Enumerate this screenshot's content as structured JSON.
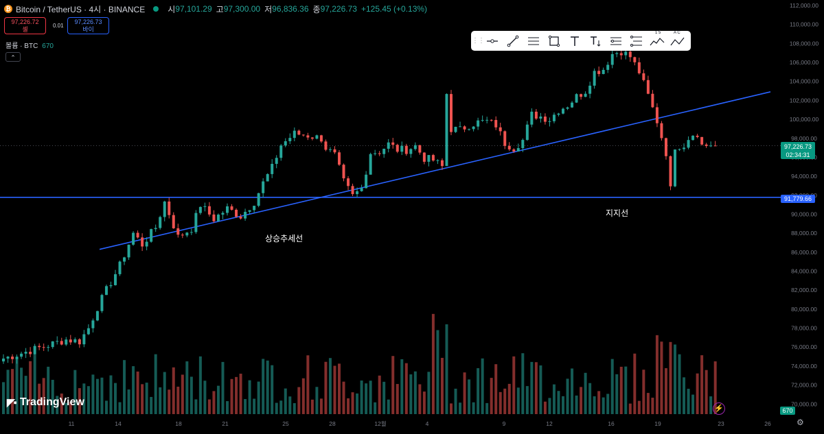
{
  "header": {
    "coin_letter": "₿",
    "symbol": "Bitcoin / TetherUS · 4시 · BINANCE",
    "open_label": "시",
    "open_value": "97,101.29",
    "high_label": "고",
    "high_value": "97,300.00",
    "low_label": "저",
    "low_value": "96,836.36",
    "close_label": "종",
    "close_value": "97,226.73",
    "change": "+125.45 (+0.13%)"
  },
  "trade": {
    "sell_price": "97,226.72",
    "sell_label": "셀",
    "spread": "0.01",
    "buy_price": "97,226.73",
    "buy_label": "바이"
  },
  "volume_legend": {
    "label": "볼륨 · BTC",
    "value": "670"
  },
  "toolbar": {
    "icons": [
      "grip-icon",
      "horizontal-ray-icon",
      "trendline-icon",
      "parallel-channel-icon",
      "rectangle-icon",
      "text-icon",
      "price-label-icon",
      "regression-icon",
      "fib-icon",
      "wave-12345-icon",
      "abc-pattern-icon"
    ],
    "wave_label": "1 5",
    "abc_label": "A C"
  },
  "annotations": {
    "trend": "상승추세선",
    "support": "지지선"
  },
  "price_tags": {
    "last": "97,226.73",
    "countdown": "02:34:31",
    "support": "91,779.66",
    "volume": "670"
  },
  "logo": {
    "text": "TradingView"
  },
  "colors": {
    "up": "#26a69a",
    "down": "#ef5350",
    "line": "#2962ff",
    "background": "#000000"
  },
  "chart_data": {
    "type": "candlestick",
    "symbol": "BTCUSDT",
    "interval": "4시",
    "yaxis": {
      "ticks": [
        "70,000.00",
        "72,000.00",
        "74,000.00",
        "76,000.00",
        "78,000.00",
        "80,000.00",
        "82,000.00",
        "84,000.00",
        "86,000.00",
        "88,000.00",
        "90,000.00",
        "92,000.00",
        "94,000.00",
        "96,000.00",
        "98,000.00",
        "100,000.00",
        "102,000.00",
        "104,000.00",
        "106,000.00",
        "108,000.00",
        "110,000.00",
        "112,000.00"
      ],
      "ylim": [
        69000,
        112000
      ]
    },
    "xaxis": {
      "ticks": [
        "11",
        "14",
        "18",
        "21",
        "25",
        "28",
        "12월",
        "4",
        "9",
        "12",
        "16",
        "19",
        "23",
        "26"
      ]
    },
    "close_path": [
      [
        0,
        74800
      ],
      [
        5,
        75500
      ],
      [
        10,
        76200
      ],
      [
        14,
        76800
      ],
      [
        17,
        76600
      ],
      [
        19,
        78000
      ],
      [
        21,
        80200
      ],
      [
        23,
        82000
      ],
      [
        26,
        84600
      ],
      [
        29,
        88000
      ],
      [
        31,
        86800
      ],
      [
        34,
        88600
      ],
      [
        36,
        91300
      ],
      [
        39,
        87600
      ],
      [
        42,
        88500
      ],
      [
        44,
        91000
      ],
      [
        47,
        89500
      ],
      [
        50,
        90600
      ],
      [
        53,
        89800
      ],
      [
        56,
        91300
      ],
      [
        58,
        93300
      ],
      [
        60,
        94900
      ],
      [
        62,
        97300
      ],
      [
        65,
        98500
      ],
      [
        68,
        98300
      ],
      [
        71,
        98000
      ],
      [
        72,
        97000
      ],
      [
        74,
        96200
      ],
      [
        76,
        93400
      ],
      [
        78,
        91900
      ],
      [
        80,
        92700
      ],
      [
        82,
        96500
      ],
      [
        84,
        96600
      ],
      [
        86,
        97400
      ],
      [
        88,
        96800
      ],
      [
        90,
        96800
      ],
      [
        92,
        97200
      ],
      [
        94,
        95900
      ],
      [
        96,
        95700
      ],
      [
        98,
        95000
      ],
      [
        99,
        102700
      ],
      [
        100,
        99000
      ],
      [
        102,
        98900
      ],
      [
        104,
        99400
      ],
      [
        106,
        99700
      ],
      [
        108,
        99800
      ],
      [
        110,
        99400
      ],
      [
        112,
        97500
      ],
      [
        114,
        97000
      ],
      [
        116,
        97800
      ],
      [
        118,
        100500
      ],
      [
        120,
        100300
      ],
      [
        122,
        100000
      ],
      [
        124,
        101000
      ],
      [
        126,
        101500
      ],
      [
        128,
        102400
      ],
      [
        130,
        103000
      ],
      [
        132,
        105000
      ],
      [
        134,
        105300
      ],
      [
        136,
        106900
      ],
      [
        138,
        107200
      ],
      [
        140,
        106600
      ],
      [
        142,
        105000
      ],
      [
        144,
        102500
      ],
      [
        146,
        99800
      ],
      [
        148,
        96500
      ],
      [
        149,
        92600
      ],
      [
        150,
        97200
      ],
      [
        152,
        97300
      ],
      [
        154,
        98700
      ],
      [
        156,
        97400
      ],
      [
        158,
        97200
      ],
      [
        159,
        97226.73
      ]
    ],
    "lines": {
      "support": {
        "label": "지지선",
        "price": 91779.66
      },
      "uptrend": {
        "label": "상승추세선",
        "start_price": 86300,
        "start_x": "14",
        "end_price": 102900,
        "end_x": "26"
      }
    },
    "volume_unit": "BTC",
    "volume_last": 670,
    "grid": false,
    "legend": "top-left"
  }
}
